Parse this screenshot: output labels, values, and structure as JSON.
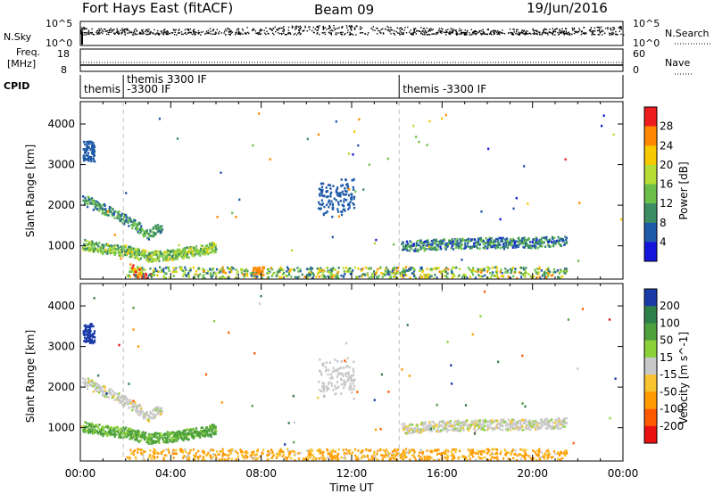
{
  "header": {
    "station": "Fort Hays East (fitACF)",
    "beam": "Beam 09",
    "date": "19/Jun/2016"
  },
  "top_panels": {
    "nsky_label": "N.Sky",
    "nsearch_label": "N.Search",
    "nsky_ticks": [
      "10^5",
      "10^0"
    ],
    "nsearch_ticks": [
      "10^5",
      "10^0"
    ],
    "freq_label_line1": "Freq.",
    "freq_label_line2": "[MHz]",
    "freq_ticks": [
      "18",
      "8"
    ],
    "nave_label": "Nave",
    "nave_ticks": [
      "60",
      "0"
    ],
    "cpid_label": "CPID",
    "cpid_segments": [
      {
        "label": "themis",
        "start": 0.0
      },
      {
        "label": "themis 3300 IF",
        "start": 1.9,
        "label2": "-3300 IF"
      },
      {
        "label": "themis -3300 IF",
        "start": 14.1
      }
    ]
  },
  "chart_data": [
    {
      "type": "heatmap",
      "title": "Power",
      "ylabel": "Slant Range [km]",
      "colorbar_label": "Power [dB]",
      "colorbar_ticks": [
        "28",
        "24",
        "20",
        "16",
        "12",
        "8",
        "4"
      ],
      "colorbar_colors": [
        "#ee1d1d",
        "#ff8800",
        "#f6c900",
        "#b5dd33",
        "#6cc04a",
        "#3c8d64",
        "#1f5aa8",
        "#1414dd"
      ],
      "x_range_hours": [
        0,
        24
      ],
      "ylim": [
        180,
        4550
      ],
      "y_ticks": [
        1000,
        2000,
        3000,
        4000
      ],
      "features": [
        {
          "name": "morning-band-upper",
          "t": [
            0.1,
            0.8,
            1.5,
            2.2,
            3.0,
            3.6
          ],
          "r": [
            2150,
            1980,
            1800,
            1600,
            1300,
            1500
          ],
          "level": 10
        },
        {
          "name": "morning-band-lower",
          "t": [
            0.1,
            1.0,
            2.0,
            3.0,
            4.0,
            5.2,
            6.0
          ],
          "r": [
            1050,
            950,
            900,
            750,
            800,
            900,
            1000
          ],
          "level": 15
        },
        {
          "name": "near-range-echo",
          "t": [
            2.2,
            2.6,
            2.9,
            3.2
          ],
          "r": [
            450,
            350,
            250,
            200
          ],
          "level": 28
        },
        {
          "name": "evening-band",
          "t": [
            14.2,
            15.5,
            17.0,
            18.5,
            20.0,
            21.5
          ],
          "r": [
            1000,
            1050,
            1080,
            1100,
            1100,
            1150
          ],
          "level": 9
        }
      ]
    },
    {
      "type": "heatmap",
      "title": "Velocity",
      "ylabel": "Slant Range [km]",
      "colorbar_label": "Velocity [m s^-1]",
      "colorbar_ticks": [
        "200",
        "100",
        "50",
        "15",
        "-15",
        "-50",
        "-100",
        "-200"
      ],
      "colorbar_colors": [
        "#1a3aa8",
        "#2f7f4a",
        "#4da03b",
        "#8cd13a",
        "#c8c8c8",
        "#f7c430",
        "#ff9a00",
        "#ff5a00",
        "#e81010"
      ],
      "x_range_hours": [
        0,
        24
      ],
      "ylim": [
        180,
        4550
      ],
      "y_ticks": [
        1000,
        2000,
        3000,
        4000
      ],
      "features": [
        {
          "name": "morning-band-upper",
          "t": [
            0.1,
            0.8,
            1.5,
            2.2,
            3.0,
            3.6
          ],
          "r": [
            2150,
            1980,
            1800,
            1600,
            1300,
            1500
          ],
          "level": 0
        },
        {
          "name": "morning-band-lower",
          "t": [
            0.1,
            1.0,
            2.0,
            3.0,
            4.0,
            5.2,
            6.0
          ],
          "r": [
            1050,
            950,
            900,
            750,
            800,
            900,
            1000
          ],
          "level": 40
        },
        {
          "name": "evening-band",
          "t": [
            14.2,
            15.5,
            17.0,
            18.5,
            20.0,
            21.5
          ],
          "r": [
            1000,
            1050,
            1080,
            1100,
            1100,
            1150
          ],
          "level": 0
        }
      ]
    }
  ],
  "x_axis": {
    "label": "Time UT",
    "ticks": [
      "00:00",
      "04:00",
      "08:00",
      "12:00",
      "16:00",
      "20:00",
      "00:00"
    ]
  }
}
